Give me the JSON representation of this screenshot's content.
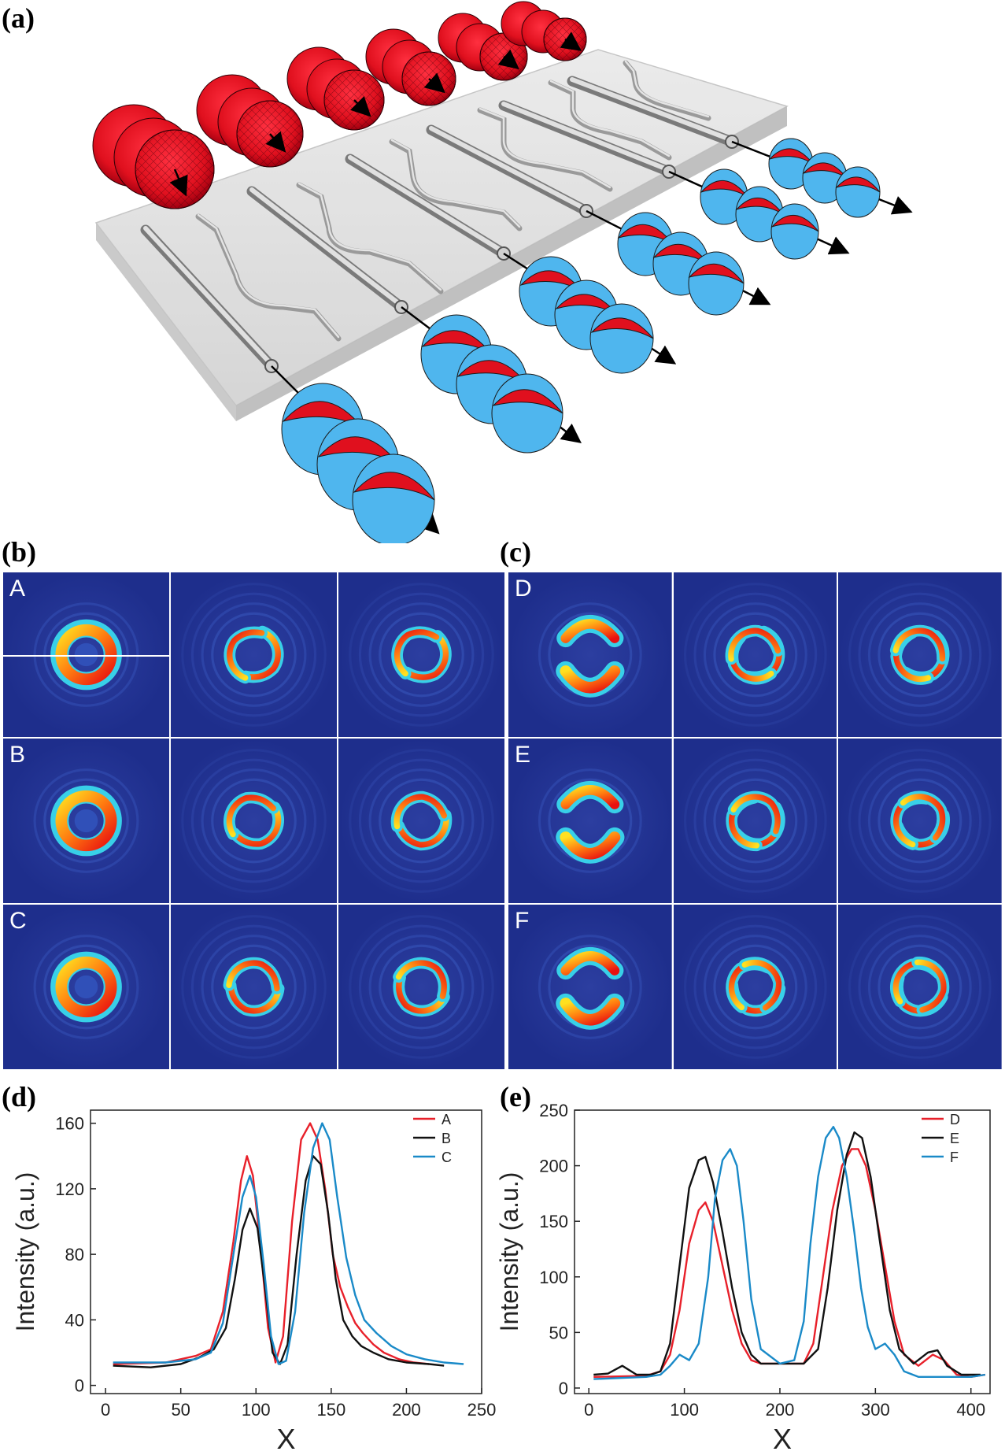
{
  "labels": {
    "a": "(a)",
    "b": "(b)",
    "c": "(c)",
    "d": "(d)",
    "e": "(e)"
  },
  "grid_b": {
    "rows": [
      "A",
      "B",
      "C"
    ]
  },
  "grid_c": {
    "rows": [
      "D",
      "E",
      "F"
    ]
  },
  "colors": {
    "red": "#e8202a",
    "black": "#111111",
    "blue": "#1a8ac8",
    "mode_bg": "#1e2e8c"
  },
  "chart_data": [
    {
      "type": "line",
      "panel": "d",
      "xlabel": "X",
      "ylabel": "Intensity (a.u.)",
      "xlim": [
        -10,
        250
      ],
      "ylim": [
        -5,
        168
      ],
      "xticks": [
        0,
        50,
        100,
        150,
        200,
        250
      ],
      "yticks": [
        0,
        40,
        80,
        120,
        160
      ],
      "legend": "top-right",
      "series": [
        {
          "name": "A",
          "color": "#e8202a",
          "x": [
            5,
            40,
            60,
            70,
            78,
            85,
            90,
            94,
            98,
            103,
            108,
            113,
            118,
            124,
            130,
            136,
            141,
            146,
            151,
            156,
            161,
            166,
            171,
            178,
            185,
            195,
            205,
            215
          ],
          "y": [
            13,
            14,
            18,
            22,
            45,
            88,
            125,
            140,
            128,
            85,
            35,
            14,
            30,
            100,
            150,
            160,
            150,
            120,
            80,
            60,
            48,
            38,
            32,
            25,
            20,
            16,
            14,
            13
          ]
        },
        {
          "name": "B",
          "color": "#111111",
          "x": [
            5,
            30,
            50,
            62,
            72,
            80,
            86,
            91,
            96,
            101,
            106,
            111,
            116,
            121,
            127,
            133,
            138,
            143,
            148,
            153,
            158,
            164,
            170,
            178,
            188,
            200,
            215,
            225
          ],
          "y": [
            12,
            11,
            13,
            17,
            22,
            35,
            65,
            95,
            108,
            96,
            60,
            20,
            13,
            25,
            80,
            125,
            140,
            135,
            105,
            65,
            40,
            30,
            24,
            20,
            16,
            14,
            13,
            12
          ]
        },
        {
          "name": "C",
          "color": "#1a8ac8",
          "x": [
            5,
            40,
            60,
            70,
            78,
            85,
            91,
            96,
            100,
            105,
            110,
            115,
            120,
            126,
            132,
            138,
            144,
            149,
            154,
            160,
            166,
            172,
            180,
            190,
            200,
            212,
            225,
            238
          ],
          "y": [
            14,
            14,
            16,
            20,
            38,
            80,
            115,
            128,
            115,
            75,
            30,
            13,
            15,
            45,
            105,
            145,
            160,
            150,
            115,
            78,
            55,
            40,
            32,
            24,
            19,
            16,
            14,
            13
          ]
        }
      ]
    },
    {
      "type": "line",
      "panel": "e",
      "xlabel": "X",
      "ylabel": "Intensity (a.u.)",
      "xlim": [
        -15,
        420
      ],
      "ylim": [
        -5,
        250
      ],
      "xticks": [
        0,
        100,
        200,
        300,
        400
      ],
      "yticks": [
        0,
        50,
        100,
        150,
        200,
        250
      ],
      "legend": "top-right",
      "series": [
        {
          "name": "D",
          "color": "#e8202a",
          "x": [
            5,
            60,
            75,
            85,
            95,
            105,
            115,
            122,
            130,
            140,
            150,
            160,
            170,
            180,
            200,
            225,
            235,
            245,
            255,
            265,
            275,
            282,
            290,
            300,
            310,
            320,
            330,
            345,
            360,
            372,
            385,
            400,
            415
          ],
          "y": [
            10,
            11,
            15,
            30,
            70,
            130,
            160,
            167,
            150,
            110,
            70,
            40,
            25,
            22,
            22,
            22,
            40,
            100,
            160,
            200,
            215,
            215,
            200,
            160,
            110,
            60,
            30,
            20,
            30,
            25,
            12,
            10,
            12
          ]
        },
        {
          "name": "E",
          "color": "#111111",
          "x": [
            5,
            20,
            35,
            50,
            65,
            75,
            85,
            95,
            105,
            115,
            122,
            130,
            140,
            150,
            160,
            170,
            180,
            200,
            225,
            240,
            250,
            260,
            270,
            278,
            286,
            295,
            305,
            315,
            325,
            340,
            355,
            365,
            375,
            390,
            410
          ],
          "y": [
            12,
            13,
            20,
            12,
            12,
            15,
            40,
            110,
            180,
            205,
            208,
            185,
            140,
            90,
            50,
            30,
            22,
            22,
            22,
            35,
            90,
            160,
            210,
            230,
            225,
            190,
            130,
            70,
            35,
            22,
            32,
            34,
            20,
            12,
            12
          ]
        },
        {
          "name": "F",
          "color": "#1a8ac8",
          "x": [
            5,
            60,
            75,
            85,
            95,
            105,
            115,
            125,
            132,
            140,
            148,
            155,
            162,
            170,
            180,
            200,
            215,
            225,
            232,
            240,
            248,
            256,
            262,
            270,
            278,
            285,
            292,
            300,
            310,
            320,
            330,
            345,
            360,
            380,
            400,
            415
          ],
          "y": [
            8,
            10,
            12,
            20,
            30,
            25,
            40,
            100,
            170,
            205,
            215,
            200,
            150,
            80,
            35,
            22,
            25,
            60,
            130,
            190,
            225,
            235,
            225,
            190,
            140,
            90,
            55,
            35,
            40,
            30,
            15,
            10,
            10,
            10,
            10,
            12
          ]
        }
      ]
    }
  ]
}
